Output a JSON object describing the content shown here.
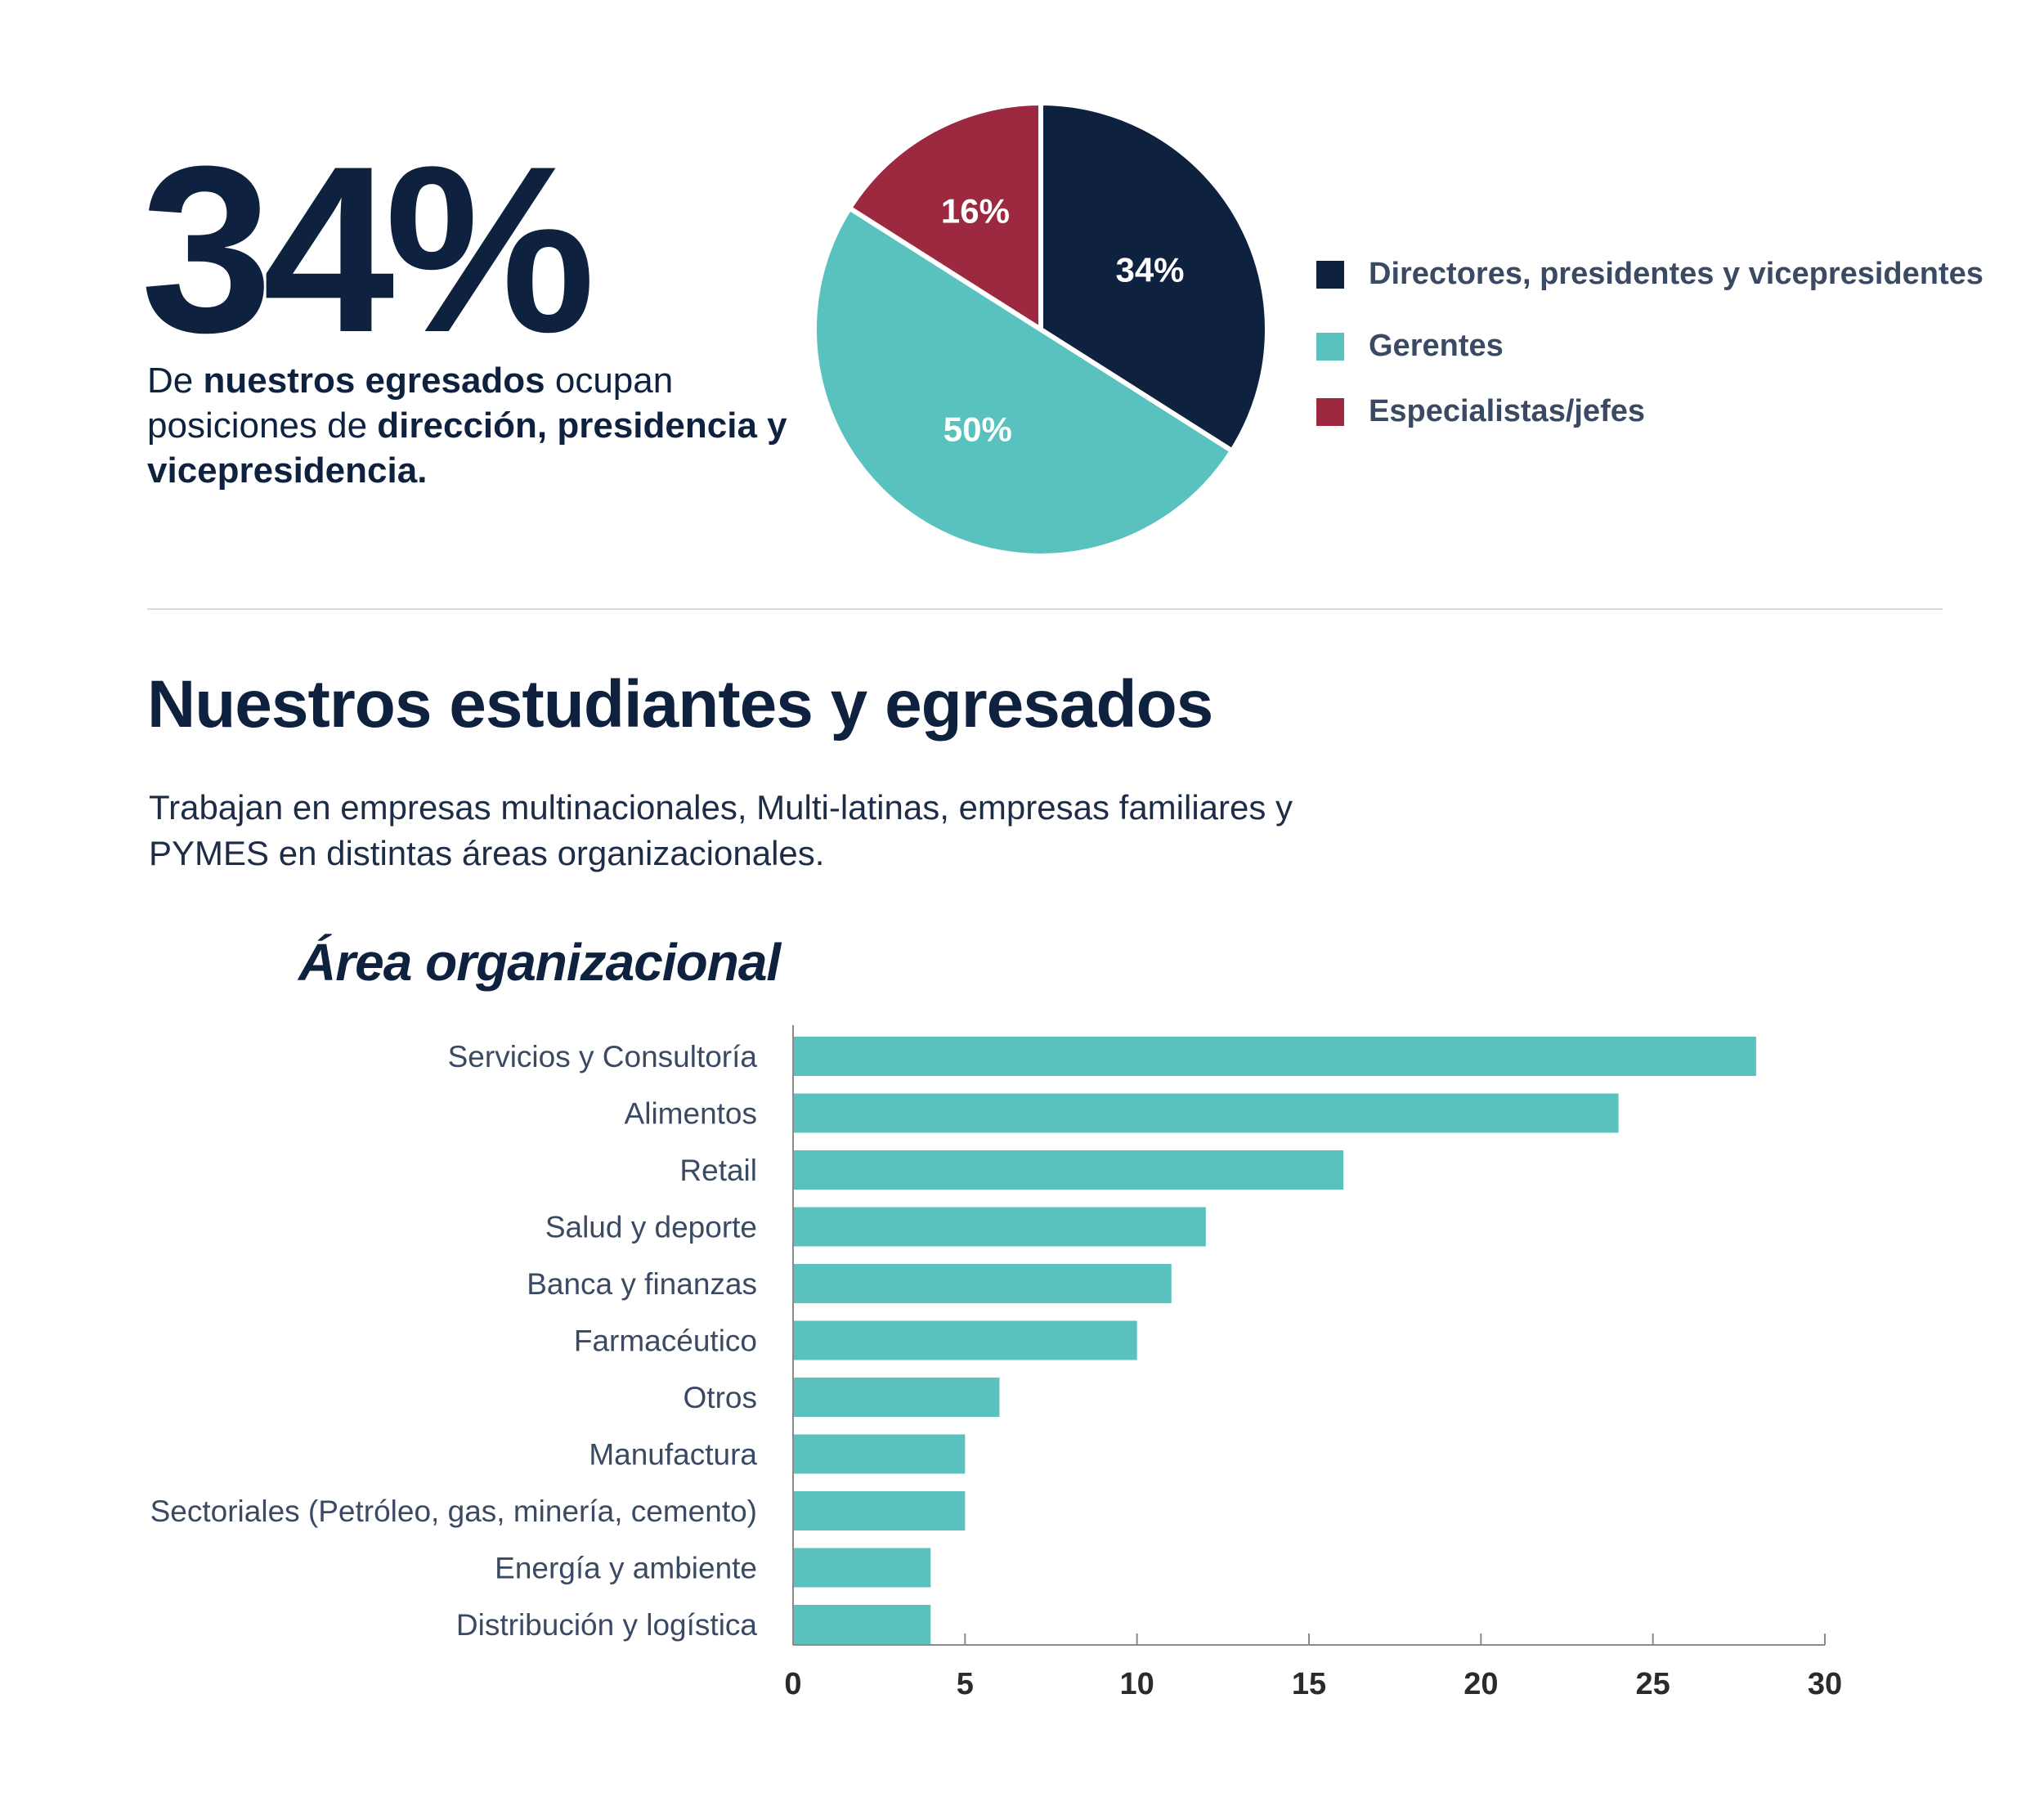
{
  "stat": {
    "value": "34%",
    "desc_prefix": "De ",
    "desc_bold1": "nuestros egresados",
    "desc_mid": " ocupan posiciones de ",
    "desc_bold2": "dirección, presidencia y vicepresidencia."
  },
  "section": {
    "title": "Nuestros estudiantes y egresados",
    "subtitle": "Trabajan en empresas multinacionales, Multi-latinas, empresas familiares y PYMES en distintas áreas organizacionales."
  },
  "colors": {
    "navy": "#0e2240",
    "teal": "#59c2be",
    "crimson": "#9d2940"
  },
  "chart_data": [
    {
      "type": "pie",
      "slices": [
        {
          "label": "Directores, presidentes y vicepresidentes",
          "value": 34,
          "display": "34%",
          "color": "#0e2240"
        },
        {
          "label": "Gerentes",
          "value": 50,
          "display": "50%",
          "color": "#59c2be"
        },
        {
          "label": "Especialistas/jefes",
          "value": 16,
          "display": "16%",
          "color": "#9d2940"
        }
      ],
      "legend": "right"
    },
    {
      "type": "bar",
      "orientation": "horizontal",
      "title": "Área organizacional",
      "categories": [
        "Servicios y Consultoría",
        "Alimentos",
        "Retail",
        "Salud y deporte",
        "Banca y finanzas",
        "Farmacéutico",
        "Otros",
        "Manufactura",
        "Sectoriales (Petróleo, gas, minería, cemento)",
        "Energía y ambiente",
        "Distribución y logística"
      ],
      "values": [
        28,
        24,
        16,
        12,
        11,
        10,
        6,
        5,
        5,
        4,
        4
      ],
      "xlim": [
        0,
        30
      ],
      "xticks": [
        "0",
        "5",
        "10",
        "15",
        "20",
        "25",
        "30"
      ],
      "color": "#59c2be",
      "grid": false
    }
  ]
}
